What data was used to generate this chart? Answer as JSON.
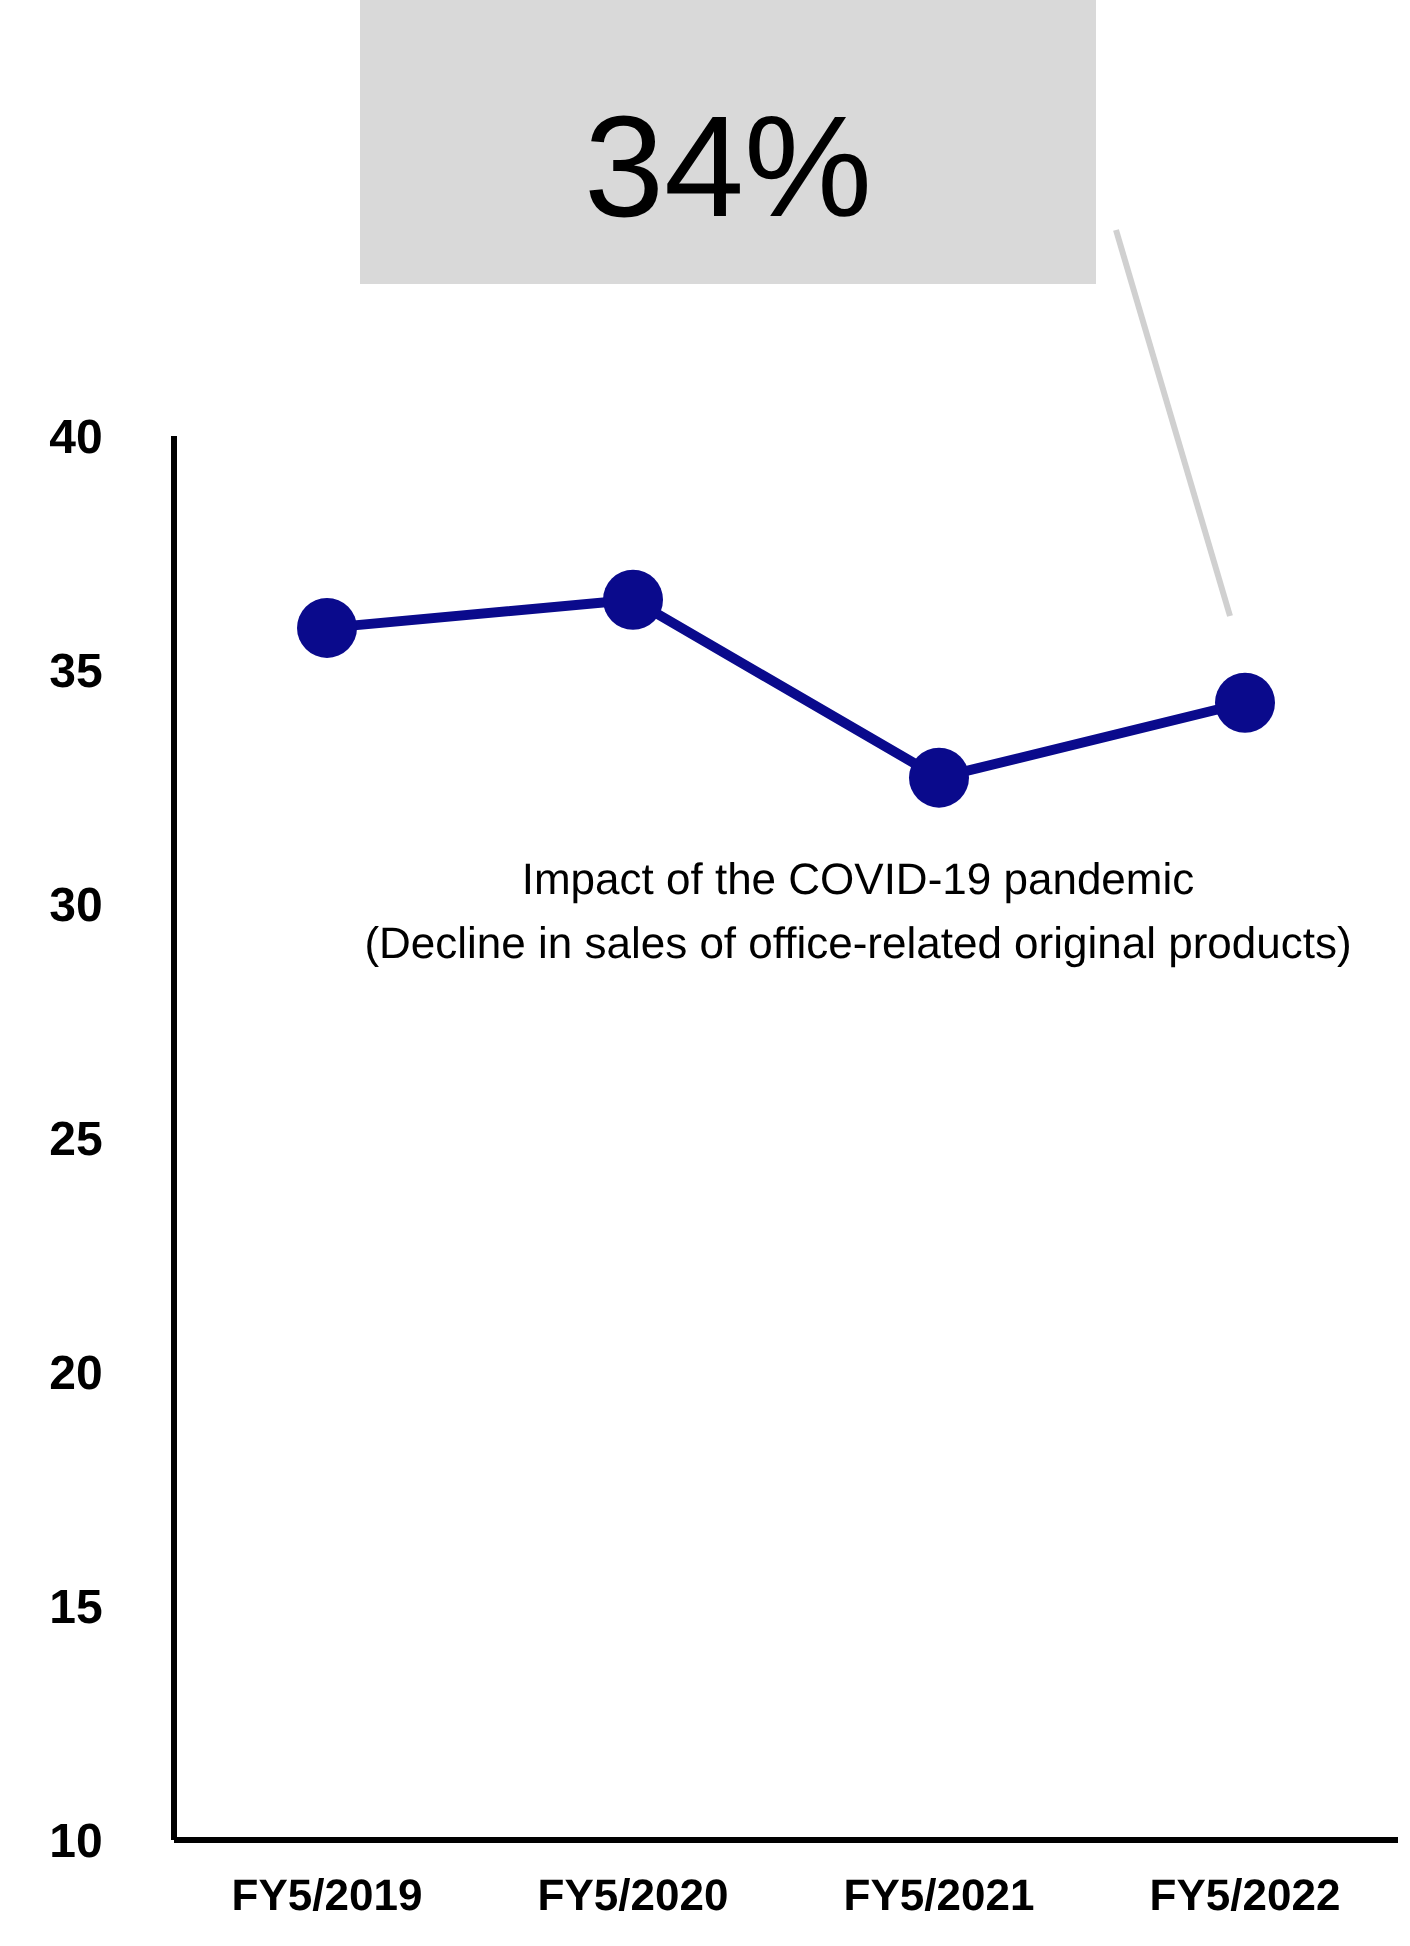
{
  "chart_data": {
    "type": "line",
    "categories": [
      "FY5/2019",
      "FY5/2020",
      "FY5/2021",
      "FY5/2022"
    ],
    "series": [
      {
        "color": "#0a0a8c",
        "values": [
          35.9,
          36.5,
          32.7,
          34.3
        ]
      }
    ],
    "ylim": [
      10,
      40
    ],
    "yticks": [
      10,
      15,
      20,
      25,
      30,
      35,
      40
    ],
    "grid": false,
    "marker": "circle",
    "line_style": "solid",
    "annotations": [
      "34%",
      "Impact of the COVID-19 pandemic",
      "(Decline in sales of office-related original products)"
    ]
  }
}
